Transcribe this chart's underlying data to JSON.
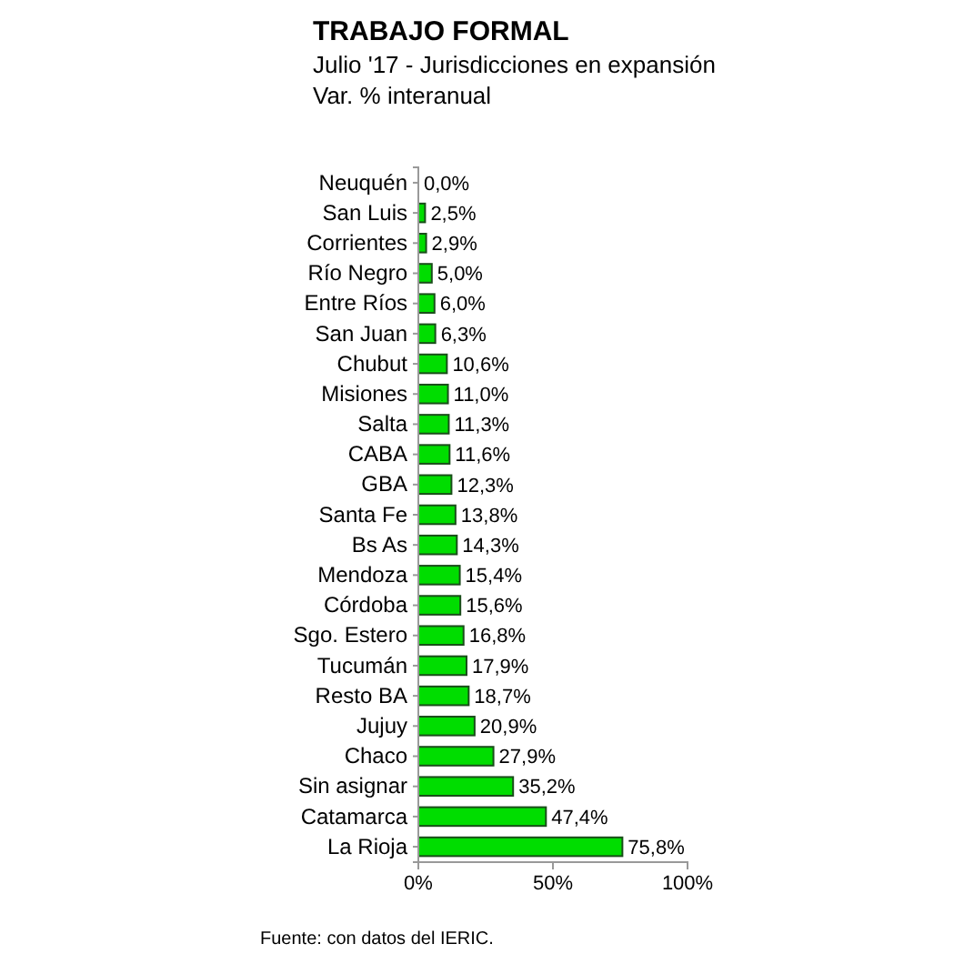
{
  "chart_data": {
    "type": "bar",
    "orientation": "horizontal",
    "title": "TRABAJO FORMAL",
    "subtitle": "Julio '17 - Jurisdicciones en expansión\nVar. % interanual",
    "categories": [
      "Neuquén",
      "San Luis",
      "Corrientes",
      "Río Negro",
      "Entre Ríos",
      "San Juan",
      "Chubut",
      "Misiones",
      "Salta",
      "CABA",
      "GBA",
      "Santa Fe",
      "Bs As",
      "Mendoza",
      "Córdoba",
      "Sgo. Estero",
      "Tucumán",
      "Resto BA",
      "Jujuy",
      "Chaco",
      "Sin asignar",
      "Catamarca",
      "La Rioja"
    ],
    "values": [
      0.0,
      2.5,
      2.9,
      5.0,
      6.0,
      6.3,
      10.6,
      11.0,
      11.3,
      11.6,
      12.3,
      13.8,
      14.3,
      15.4,
      15.6,
      16.8,
      17.9,
      18.7,
      20.9,
      27.9,
      35.2,
      47.4,
      75.8
    ],
    "value_labels": [
      "0,0%",
      "2,5%",
      "2,9%",
      "5,0%",
      "6,0%",
      "6,3%",
      "10,6%",
      "11,0%",
      "11,3%",
      "11,6%",
      "12,3%",
      "13,8%",
      "14,3%",
      "15,4%",
      "15,6%",
      "16,8%",
      "17,9%",
      "18,7%",
      "20,9%",
      "27,9%",
      "35,2%",
      "47,4%",
      "75,8%"
    ],
    "color": "#00dd00",
    "xlim": [
      0,
      100
    ],
    "xticks": [
      {
        "value": 0,
        "label": "0%"
      },
      {
        "value": 50,
        "label": "50%"
      },
      {
        "value": 100,
        "label": "100%"
      }
    ],
    "grid": false,
    "annotations": [
      "Fuente: con datos del IERIC."
    ]
  }
}
